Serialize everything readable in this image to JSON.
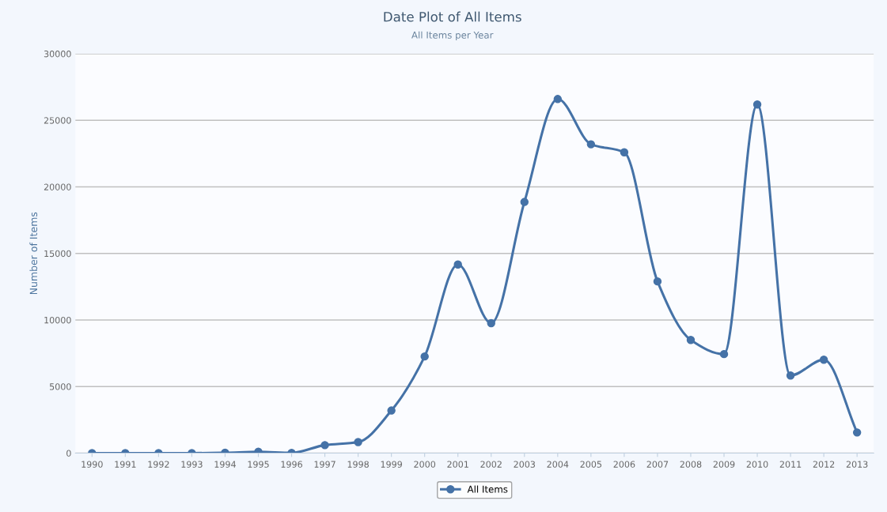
{
  "chart_data": {
    "type": "line",
    "title": "Date Plot of All Items",
    "subtitle": "All Items per Year",
    "ylabel": "Number of Items",
    "categories": [
      "1990",
      "1991",
      "1992",
      "1993",
      "1994",
      "1995",
      "1996",
      "1997",
      "1998",
      "1999",
      "2000",
      "2001",
      "2002",
      "2003",
      "2004",
      "2005",
      "2006",
      "2007",
      "2008",
      "2009",
      "2010",
      "2011",
      "2012",
      "2013"
    ],
    "series": [
      {
        "name": "All Items",
        "color": "#4572a7",
        "values": [
          0,
          0,
          0,
          0,
          30,
          100,
          20,
          600,
          830,
          3200,
          7260,
          14170,
          9760,
          18870,
          26600,
          23200,
          22600,
          12900,
          8500,
          7440,
          26190,
          5830,
          7020,
          1550
        ]
      }
    ],
    "ylim": [
      0,
      30000
    ],
    "yticks": [
      0,
      5000,
      10000,
      15000,
      20000,
      25000,
      30000
    ],
    "grid": "y",
    "legend": "bottom",
    "marker": "circle",
    "line_style": "solid"
  }
}
